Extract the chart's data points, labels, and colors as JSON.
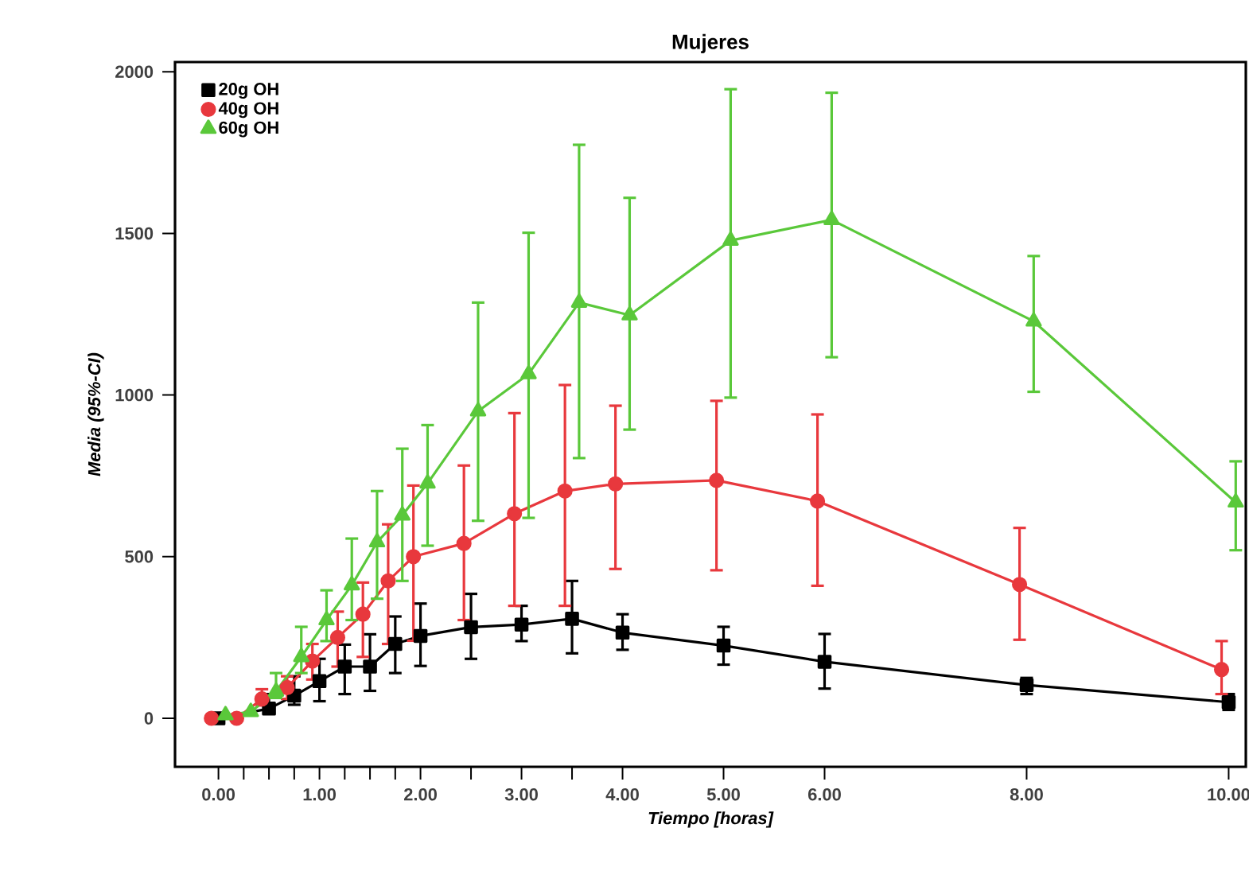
{
  "chart_data": {
    "type": "line",
    "title": "Mujeres",
    "xlabel": "Tiempo [horas]",
    "ylabel": "*Media (95%-CI)*",
    "x": [
      0,
      0.25,
      0.5,
      0.75,
      1.0,
      1.25,
      1.5,
      1.75,
      2.0,
      2.5,
      3.0,
      3.5,
      4.0,
      5.0,
      6.0,
      8.0,
      10.0
    ],
    "series": [
      {
        "name": "20g OH",
        "color": "#000000",
        "marker": "square",
        "values": [
          0,
          null,
          30,
          70,
          115,
          160,
          160,
          230,
          255,
          282,
          290,
          308,
          265,
          225,
          175,
          103,
          50
        ],
        "errors": [
          null,
          null,
          [
            20,
            75
          ],
          [
            42,
            130
          ],
          [
            53,
            184
          ],
          [
            75,
            228
          ],
          [
            85,
            260
          ],
          [
            140,
            315
          ],
          [
            162,
            355
          ],
          [
            184,
            385
          ],
          [
            239,
            348
          ],
          [
            201,
            425
          ],
          [
            212,
            322
          ],
          [
            166,
            283
          ],
          [
            92,
            261
          ],
          [
            75,
            125
          ],
          [
            26,
            75
          ]
        ]
      },
      {
        "name": "40g OH",
        "color": "#e8383d",
        "marker": "circle",
        "x": [
          -0.07,
          0.18,
          0.43,
          0.68,
          0.93,
          1.18,
          1.43,
          1.68,
          1.93,
          2.43,
          2.93,
          3.43,
          3.93,
          4.93,
          5.93,
          7.93,
          9.93
        ],
        "values": [
          0,
          0,
          60,
          95,
          177,
          250,
          322,
          425,
          500,
          541,
          633,
          703,
          725,
          736,
          672,
          414,
          151
        ],
        "errors": [
          null,
          null,
          [
            40,
            90
          ],
          [
            60,
            130
          ],
          [
            120,
            230
          ],
          [
            160,
            330
          ],
          [
            190,
            420
          ],
          [
            230,
            600
          ],
          [
            240,
            720
          ],
          [
            304,
            782
          ],
          [
            348,
            944
          ],
          [
            348,
            1031
          ],
          [
            462,
            967
          ],
          [
            458,
            982
          ],
          [
            410,
            940
          ],
          [
            243,
            589
          ],
          [
            75,
            239
          ]
        ]
      },
      {
        "name": "60g OH",
        "color": "#5ac83a",
        "marker": "triangle",
        "x": [
          0.07,
          0.32,
          0.57,
          0.82,
          1.07,
          1.32,
          1.57,
          1.82,
          2.07,
          2.57,
          3.07,
          3.57,
          4.07,
          5.07,
          6.07,
          8.07,
          10.07
        ],
        "values": [
          10,
          20,
          83,
          190,
          304,
          412,
          545,
          628,
          727,
          950,
          1065,
          1286,
          1247,
          1478,
          1542,
          1228,
          668
        ],
        "errors": [
          null,
          null,
          [
            63,
            140
          ],
          [
            140,
            283
          ],
          [
            239,
            396
          ],
          [
            304,
            556
          ],
          [
            370,
            703
          ],
          [
            425,
            834
          ],
          [
            534,
            907
          ],
          [
            611,
            1286
          ],
          [
            620,
            1502
          ],
          [
            805,
            1774
          ],
          [
            893,
            1610
          ],
          [
            992,
            1946
          ],
          [
            1117,
            1935
          ],
          [
            1010,
            1430
          ],
          [
            520,
            795
          ]
        ]
      }
    ],
    "xlim": [
      -0.43,
      10.17
    ],
    "ylim": [
      -150,
      2030
    ],
    "xticks": [
      {
        "value": 0,
        "label": "0.00"
      },
      {
        "value": 0.25,
        "label": null
      },
      {
        "value": 0.5,
        "label": null
      },
      {
        "value": 0.75,
        "label": null
      },
      {
        "value": 1,
        "label": "1.00"
      },
      {
        "value": 1.25,
        "label": null
      },
      {
        "value": 1.5,
        "label": null
      },
      {
        "value": 1.75,
        "label": null
      },
      {
        "value": 2,
        "label": "2.00"
      },
      {
        "value": 2.5,
        "label": null
      },
      {
        "value": 3,
        "label": "3.00"
      },
      {
        "value": 3.5,
        "label": null
      },
      {
        "value": 4,
        "label": "4.00"
      },
      {
        "value": 5,
        "label": "5.00"
      },
      {
        "value": 6,
        "label": "6.00"
      },
      {
        "value": 8,
        "label": "8.00"
      },
      {
        "value": 10,
        "label": "10.00"
      }
    ],
    "yticks": [
      0,
      500,
      1000,
      1500,
      2000
    ],
    "grid": false,
    "legend": "top left",
    "line_style": "solid"
  }
}
